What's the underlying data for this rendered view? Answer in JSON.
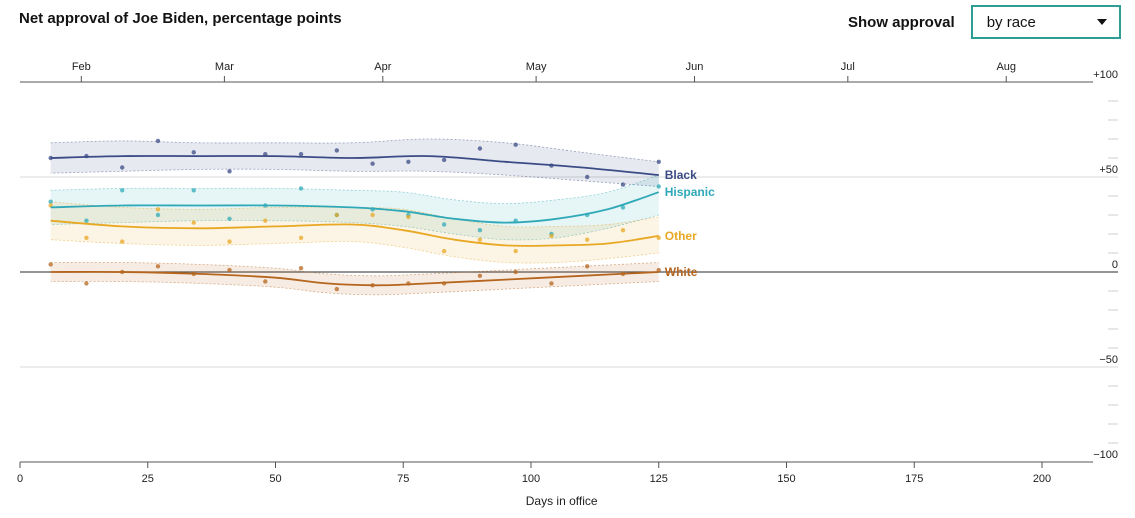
{
  "header": {
    "title": "Net approval of Joe Biden, percentage points",
    "control_label": "Show approval",
    "selected_option": "by race"
  },
  "colors": {
    "Black": "#3b4b86",
    "Hispanic": "#2fa9b8",
    "Other": "#e8a823",
    "White": "#b5651d",
    "border": "#2e9e95"
  },
  "chart_data": {
    "type": "line",
    "title": "Net approval of Joe Biden, percentage points",
    "xlabel": "Days in office",
    "ylabel": "",
    "xlim": [
      0,
      210
    ],
    "ylim": [
      -100,
      100
    ],
    "x_ticks": [
      0,
      25,
      50,
      75,
      100,
      125,
      150,
      175,
      200
    ],
    "y_ticks": [
      {
        "value": 100,
        "label": "+100"
      },
      {
        "value": 50,
        "label": "+50"
      },
      {
        "value": 0,
        "label": "0"
      },
      {
        "value": -50,
        "label": "-50"
      },
      {
        "value": -100,
        "label": "-100"
      }
    ],
    "month_ticks": [
      {
        "label": "Feb",
        "day": 12
      },
      {
        "label": "Mar",
        "day": 40
      },
      {
        "label": "Apr",
        "day": 71
      },
      {
        "label": "May",
        "day": 101
      },
      {
        "label": "Jun",
        "day": 132
      },
      {
        "label": "Jul",
        "day": 162
      },
      {
        "label": "Aug",
        "day": 193
      }
    ],
    "grid": true,
    "series": [
      {
        "name": "Black",
        "x": [
          6,
          20,
          35,
          50,
          65,
          80,
          95,
          110,
          125
        ],
        "y": [
          60,
          61,
          61,
          61,
          60,
          61,
          58,
          55,
          51
        ],
        "lower": [
          52,
          53,
          54,
          54,
          53,
          53,
          51,
          48,
          45
        ],
        "upper": [
          68,
          69,
          68,
          68,
          68,
          70,
          68,
          63,
          58
        ],
        "points": [
          [
            6,
            60
          ],
          [
            13,
            61
          ],
          [
            20,
            55
          ],
          [
            27,
            69
          ],
          [
            34,
            63
          ],
          [
            41,
            53
          ],
          [
            48,
            62
          ],
          [
            55,
            62
          ],
          [
            62,
            64
          ],
          [
            69,
            57
          ],
          [
            76,
            58
          ],
          [
            83,
            59
          ],
          [
            90,
            65
          ],
          [
            97,
            67
          ],
          [
            104,
            56
          ],
          [
            111,
            50
          ],
          [
            118,
            46
          ],
          [
            125,
            58
          ]
        ]
      },
      {
        "name": "Hispanic",
        "x": [
          6,
          20,
          35,
          50,
          65,
          75,
          85,
          95,
          105,
          115,
          125
        ],
        "y": [
          34,
          35,
          35,
          35,
          34,
          32,
          28,
          26,
          28,
          33,
          42
        ],
        "lower": [
          25,
          26,
          27,
          27,
          26,
          24,
          20,
          17,
          18,
          23,
          30
        ],
        "upper": [
          43,
          44,
          44,
          44,
          43,
          42,
          38,
          36,
          38,
          42,
          51
        ],
        "points": [
          [
            6,
            37
          ],
          [
            13,
            27
          ],
          [
            20,
            43
          ],
          [
            27,
            30
          ],
          [
            34,
            43
          ],
          [
            41,
            28
          ],
          [
            48,
            35
          ],
          [
            55,
            44
          ],
          [
            62,
            30
          ],
          [
            69,
            33
          ],
          [
            76,
            30
          ],
          [
            83,
            25
          ],
          [
            90,
            22
          ],
          [
            97,
            27
          ],
          [
            104,
            20
          ],
          [
            111,
            30
          ],
          [
            118,
            34
          ],
          [
            125,
            45
          ]
        ]
      },
      {
        "name": "Other",
        "x": [
          6,
          20,
          35,
          50,
          65,
          75,
          85,
          95,
          105,
          115,
          125
        ],
        "y": [
          27,
          24,
          23,
          24,
          25,
          22,
          17,
          14,
          14,
          15,
          19
        ],
        "lower": [
          17,
          15,
          14,
          15,
          16,
          13,
          8,
          5,
          5,
          7,
          10
        ],
        "upper": [
          37,
          34,
          33,
          34,
          34,
          33,
          28,
          24,
          24,
          25,
          29
        ],
        "points": [
          [
            6,
            35
          ],
          [
            13,
            18
          ],
          [
            20,
            16
          ],
          [
            27,
            33
          ],
          [
            34,
            26
          ],
          [
            41,
            16
          ],
          [
            48,
            27
          ],
          [
            55,
            18
          ],
          [
            62,
            30
          ],
          [
            69,
            30
          ],
          [
            76,
            29
          ],
          [
            83,
            11
          ],
          [
            90,
            17
          ],
          [
            97,
            11
          ],
          [
            104,
            19
          ],
          [
            111,
            17
          ],
          [
            118,
            22
          ],
          [
            125,
            18
          ]
        ]
      },
      {
        "name": "White",
        "x": [
          6,
          20,
          35,
          50,
          60,
          70,
          80,
          95,
          110,
          125
        ],
        "y": [
          0,
          0,
          -1,
          -3,
          -6,
          -7,
          -6,
          -4,
          -2,
          0
        ],
        "lower": [
          -5,
          -5,
          -6,
          -8,
          -11,
          -12,
          -11,
          -9,
          -7,
          -5
        ],
        "upper": [
          5,
          5,
          4,
          2,
          -1,
          -2,
          -1,
          1,
          3,
          5
        ],
        "points": [
          [
            6,
            4
          ],
          [
            13,
            -6
          ],
          [
            20,
            0
          ],
          [
            27,
            3
          ],
          [
            34,
            -1
          ],
          [
            41,
            1
          ],
          [
            48,
            -5
          ],
          [
            55,
            2
          ],
          [
            62,
            -9
          ],
          [
            69,
            -7
          ],
          [
            76,
            -6
          ],
          [
            83,
            -6
          ],
          [
            90,
            -2
          ],
          [
            97,
            0
          ],
          [
            104,
            -6
          ],
          [
            111,
            3
          ],
          [
            118,
            -1
          ],
          [
            125,
            1
          ]
        ]
      }
    ]
  }
}
